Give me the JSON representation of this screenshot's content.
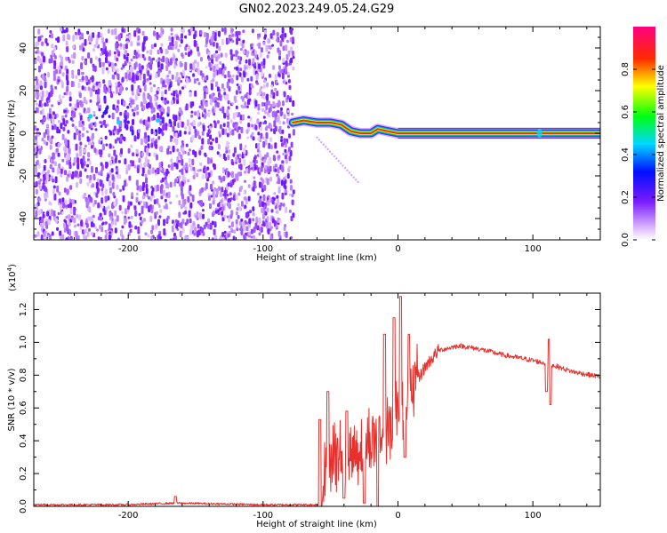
{
  "figure": {
    "title": "GN02.2023.249.05.24.G29"
  },
  "colorbar": {
    "label": "Normalized spectral amplitude",
    "ticks": [
      "0.0",
      "0.2",
      "0.4",
      "0.6",
      "0.8"
    ],
    "range": [
      0,
      1
    ],
    "colormap": "rainbow (white-violet-blue-cyan-green-yellow-red-magenta)"
  },
  "chart_data": [
    {
      "type": "heatmap",
      "xlabel": "Height of straight line (km)",
      "ylabel": "Frequency (Hz)",
      "xlim": [
        -270,
        150
      ],
      "ylim": [
        -50,
        50
      ],
      "xticks": [
        "-200",
        "-100",
        "0",
        "100"
      ],
      "yticks": [
        "-40",
        "-20",
        "0",
        "20",
        "40"
      ],
      "noise_region": {
        "x_range": [
          -270,
          -78
        ],
        "y_range": [
          -50,
          50
        ],
        "description": "scattered violet noise"
      },
      "signal_track": [
        {
          "x": -78,
          "y": 5
        },
        {
          "x": -70,
          "y": 6
        },
        {
          "x": -60,
          "y": 5
        },
        {
          "x": -50,
          "y": 5
        },
        {
          "x": -42,
          "y": 4
        },
        {
          "x": -35,
          "y": 1
        },
        {
          "x": -28,
          "y": 0
        },
        {
          "x": -20,
          "y": 0
        },
        {
          "x": -15,
          "y": 2
        },
        {
          "x": -8,
          "y": 1
        },
        {
          "x": 0,
          "y": 0
        },
        {
          "x": 150,
          "y": 0
        }
      ]
    },
    {
      "type": "line",
      "xlabel": "Height of straight line (km)",
      "ylabel": "SNR (10 * v/v)",
      "scale_label": "(x10",
      "scale_exponent": "4",
      "xlim": [
        -270,
        150
      ],
      "ylim": [
        0,
        1.3
      ],
      "xticks": [
        "-200",
        "-100",
        "0",
        "100"
      ],
      "yticks": [
        "0.0",
        "0.2",
        "0.4",
        "0.6",
        "0.8",
        "1.0",
        "1.2"
      ],
      "series_color": "#e8302c",
      "envelope": [
        {
          "x": -270,
          "y": 0.01
        },
        {
          "x": -200,
          "y": 0.01
        },
        {
          "x": -165,
          "y": 0.02
        },
        {
          "x": -100,
          "y": 0.01
        },
        {
          "x": -57,
          "y": 0.01
        },
        {
          "x": -55,
          "y": 0.15
        },
        {
          "x": -50,
          "y": 0.3
        },
        {
          "x": -40,
          "y": 0.3
        },
        {
          "x": -30,
          "y": 0.35
        },
        {
          "x": -20,
          "y": 0.4
        },
        {
          "x": -10,
          "y": 0.45
        },
        {
          "x": 0,
          "y": 0.6
        },
        {
          "x": 10,
          "y": 0.7
        },
        {
          "x": 20,
          "y": 0.85
        },
        {
          "x": 30,
          "y": 0.95
        },
        {
          "x": 45,
          "y": 0.98
        },
        {
          "x": 60,
          "y": 0.96
        },
        {
          "x": 80,
          "y": 0.92
        },
        {
          "x": 100,
          "y": 0.89
        },
        {
          "x": 115,
          "y": 0.86
        },
        {
          "x": 130,
          "y": 0.82
        },
        {
          "x": 150,
          "y": 0.79
        }
      ],
      "spikes": [
        {
          "x": -165,
          "y": 0.06
        },
        {
          "x": -58,
          "y": 0.53
        },
        {
          "x": -52,
          "y": 0.7
        },
        {
          "x": -38,
          "y": 0.58
        },
        {
          "x": -25,
          "y": 0.63
        },
        {
          "x": -15,
          "y": 0.85
        },
        {
          "x": -10,
          "y": 1.05
        },
        {
          "x": -3,
          "y": 1.15
        },
        {
          "x": 2,
          "y": 1.28
        },
        {
          "x": 8,
          "y": 1.05
        },
        {
          "x": 112,
          "y": 1.02
        }
      ],
      "dips": [
        {
          "x": -40,
          "y": 0.05
        },
        {
          "x": -25,
          "y": 0.02
        },
        {
          "x": -15,
          "y": 0.0
        },
        {
          "x": 5,
          "y": 0.3
        },
        {
          "x": 110,
          "y": 0.7
        },
        {
          "x": 113,
          "y": 0.62
        }
      ]
    }
  ]
}
